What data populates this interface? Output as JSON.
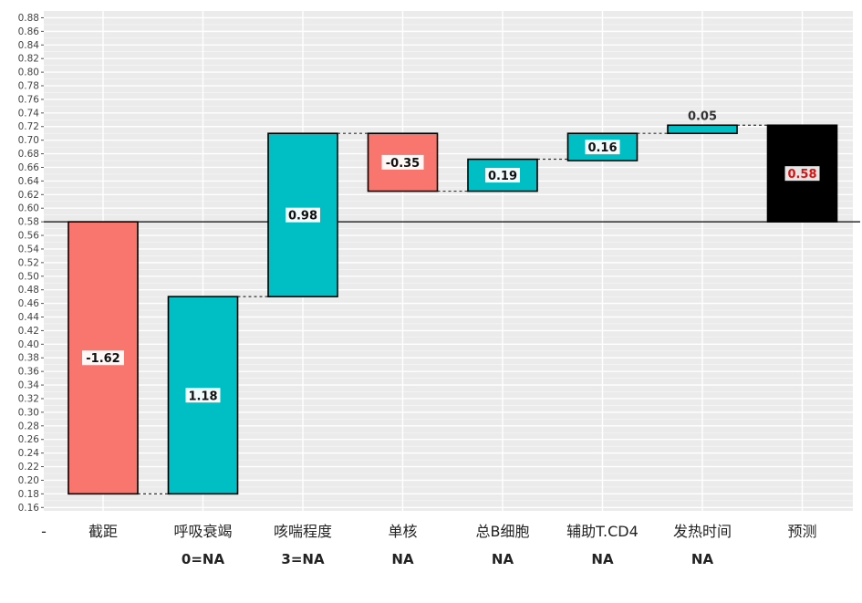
{
  "chart_data": {
    "type": "waterfall",
    "title": "",
    "xlabel": "",
    "ylabel": "",
    "ylim": [
      0.16,
      0.88
    ],
    "ytick_step": 0.02,
    "grid": true,
    "legend": "none",
    "baseline": 0.58,
    "x_first_label": "-",
    "colors": {
      "negative": "#f8766d",
      "positive": "#00bfc4",
      "total": "#000000",
      "panel": "#ebebeb",
      "grid": "#ffffff",
      "label_box": "#ffffff"
    },
    "steps": [
      {
        "name": "截距",
        "sublabel": "",
        "value": -0.4,
        "start": 0.58,
        "end": 0.18,
        "label": "-1.62",
        "kind": "negative"
      },
      {
        "name": "呼吸衰竭",
        "sublabel": "0=NA",
        "value": 0.29,
        "start": 0.18,
        "end": 0.47,
        "label": "1.18",
        "kind": "positive"
      },
      {
        "name": "咳喘程度",
        "sublabel": "3=NA",
        "value": 0.24,
        "start": 0.47,
        "end": 0.71,
        "label": "0.98",
        "kind": "positive"
      },
      {
        "name": "单核",
        "sublabel": "NA",
        "value": -0.085,
        "start": 0.71,
        "end": 0.625,
        "label": "-0.35",
        "kind": "negative"
      },
      {
        "name": "总B细胞",
        "sublabel": "NA",
        "value": 0.047,
        "start": 0.625,
        "end": 0.672,
        "label": "0.19",
        "kind": "positive"
      },
      {
        "name": "辅助T.CD4",
        "sublabel": "NA",
        "value": 0.04,
        "start": 0.67,
        "end": 0.71,
        "label": "0.16",
        "kind": "positive"
      },
      {
        "name": "发热时间",
        "sublabel": "NA",
        "value": 0.012,
        "start": 0.71,
        "end": 0.722,
        "label": "0.05",
        "kind": "positive"
      },
      {
        "name": "预测",
        "sublabel": "",
        "value": 0.722,
        "start": 0.58,
        "end": 0.722,
        "label": "0.58",
        "kind": "total"
      }
    ]
  }
}
